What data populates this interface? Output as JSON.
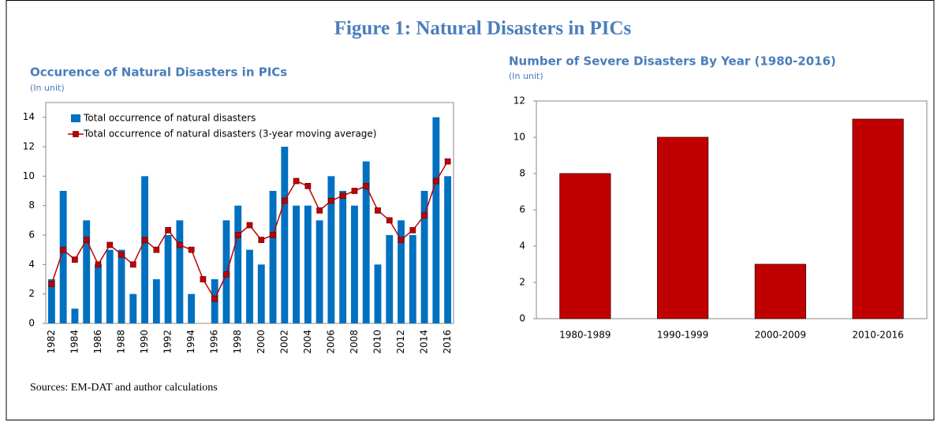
{
  "title": "Figure 1: Natural Disasters in PICs",
  "source": "Sources: EM-DAT and author calculations",
  "chart_data": [
    {
      "type": "combo",
      "title": "Occurence of Natural Disasters in PICs",
      "subtitle": "(In unit)",
      "categories": [
        "1982",
        null,
        "1984",
        null,
        "1986",
        null,
        "1988",
        null,
        "1990",
        null,
        "1992",
        null,
        "1994",
        null,
        "1996",
        null,
        "1998",
        null,
        "2000",
        null,
        "2002",
        null,
        "2004",
        null,
        "2006",
        null,
        "2008",
        null,
        "2010",
        null,
        "2012",
        null,
        "2014",
        null,
        "2016"
      ],
      "series": [
        {
          "name": "Total occurrence of natural disasters",
          "kind": "bar",
          "color": "#0070c0",
          "values": [
            3,
            9,
            1,
            7,
            4,
            5,
            5,
            2,
            10,
            3,
            6,
            7,
            2,
            0,
            3,
            7,
            8,
            5,
            4,
            9,
            12,
            8,
            8,
            7,
            10,
            9,
            8,
            11,
            4,
            6,
            7,
            6,
            9,
            14,
            10
          ]
        },
        {
          "name": "Total occurrence of natural disasters (3-year moving average)",
          "kind": "line",
          "color": "#c00000",
          "values": [
            2.67,
            5,
            4.33,
            5.67,
            4,
            5.33,
            4.67,
            4,
            5.67,
            5,
            6.33,
            5.33,
            5,
            3,
            1.67,
            3.33,
            6,
            6.67,
            5.67,
            6,
            8.33,
            9.67,
            9.33,
            7.67,
            8.33,
            8.67,
            9,
            9.33,
            7.67,
            7,
            5.67,
            6.33,
            7.33,
            9.67,
            11
          ]
        }
      ],
      "ylim": [
        0,
        15
      ],
      "yticks": [
        0,
        2,
        4,
        6,
        8,
        10,
        12,
        14
      ],
      "legend": "top-left"
    },
    {
      "type": "bar",
      "title": "Number of Severe Disasters By Year (1980-2016)",
      "subtitle": "(In unit)",
      "categories": [
        "1980-1989",
        "1990-1999",
        "2000-2009",
        "2010-2016"
      ],
      "values": [
        8,
        10,
        3,
        11
      ],
      "color": "#c00000",
      "ylim": [
        0,
        12
      ],
      "yticks": [
        0,
        2,
        4,
        6,
        8,
        10,
        12
      ]
    }
  ]
}
